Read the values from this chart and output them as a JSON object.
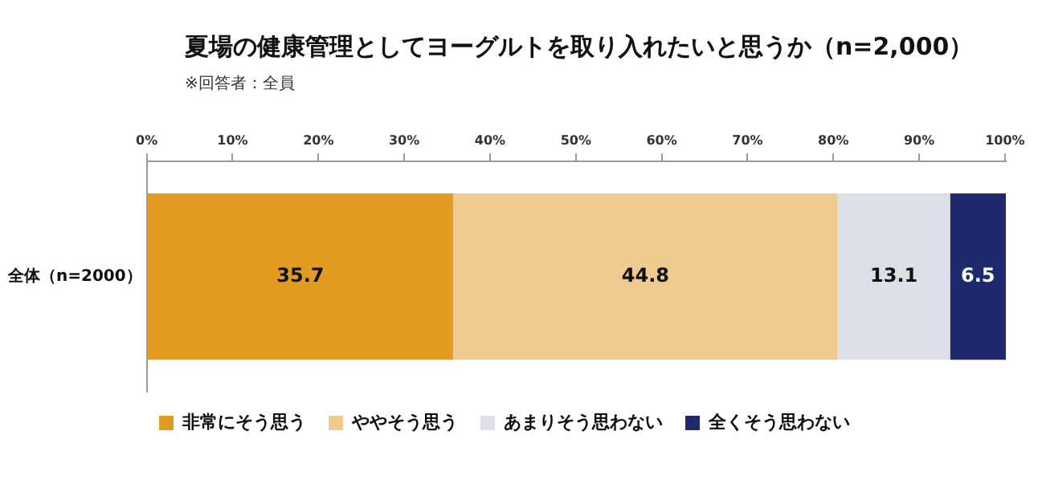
{
  "chart_data": {
    "type": "bar",
    "orientation": "horizontal",
    "stacked": true,
    "title": "夏場の健康管理としてヨーグルトを取り入れたいと思うか（n=2,000）",
    "subtitle": "※回答者：全員",
    "categories": [
      "全体（n=2000）"
    ],
    "series": [
      {
        "name": "非常にそう思う",
        "color": "#e39b22",
        "values": [
          35.7
        ]
      },
      {
        "name": "ややそう思う",
        "color": "#f0cb8f",
        "values": [
          44.8
        ]
      },
      {
        "name": "あまりそう思わない",
        "color": "#dcdee8",
        "values": [
          13.1
        ]
      },
      {
        "name": "全くそう思わない",
        "color": "#1f2a6e",
        "values": [
          6.5
        ]
      }
    ],
    "xlim": [
      0,
      100.1
    ],
    "xticks": [
      {
        "value": 0,
        "label": "0%"
      },
      {
        "value": 10,
        "label": "10%"
      },
      {
        "value": 20,
        "label": "20%"
      },
      {
        "value": 30,
        "label": "30%"
      },
      {
        "value": 40,
        "label": "40%"
      },
      {
        "value": 50,
        "label": "50%"
      },
      {
        "value": 60,
        "label": "60%"
      },
      {
        "value": 70,
        "label": "70%"
      },
      {
        "value": 80,
        "label": "80%"
      },
      {
        "value": 90,
        "label": "90%"
      },
      {
        "value": 100,
        "label": "100%"
      }
    ],
    "grid": false,
    "legend": "bottom",
    "data_labels": true
  }
}
